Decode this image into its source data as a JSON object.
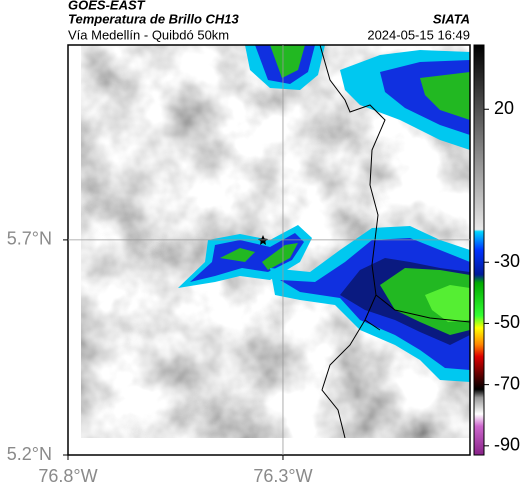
{
  "header": {
    "source": "GOES-EAST",
    "product": "Temperatura de Brillo CH13",
    "org": "SIATA",
    "route": "Vía Medellín - Quibdó 50km",
    "datetime": "2024-05-15 16:49"
  },
  "map": {
    "xlim": [
      -76.8,
      -75.865
    ],
    "ylim": [
      5.2,
      6.153
    ],
    "xticks": [
      {
        "value": -76.8,
        "label": "76.8°W"
      },
      {
        "value": -76.3,
        "label": "76.3°W"
      }
    ],
    "yticks": [
      {
        "value": 5.7,
        "label": "5.7°N"
      },
      {
        "value": 5.2,
        "label": "5.2°N"
      }
    ]
  },
  "colorbar": {
    "lim": [
      -93,
      41
    ],
    "ticks": [
      20,
      -30,
      -50,
      -70,
      -90
    ]
  }
}
